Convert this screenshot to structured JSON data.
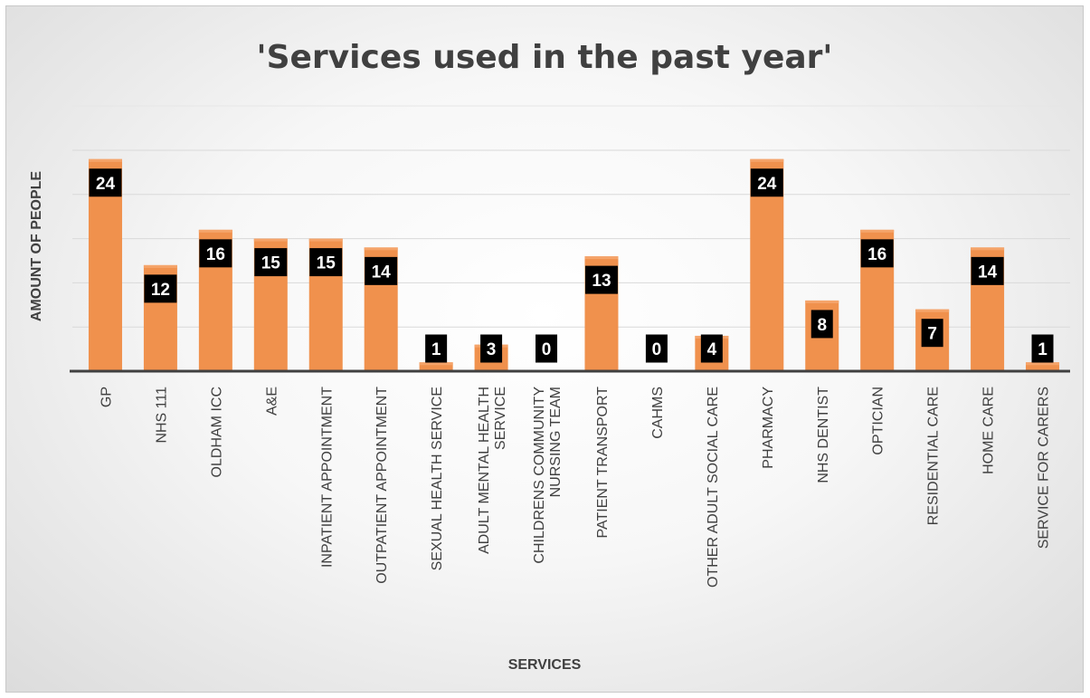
{
  "chart_data": {
    "type": "bar",
    "title": "'Services used in the past year'",
    "xlabel": "SERVICES",
    "ylabel": "AMOUNT OF PEOPLE",
    "ylim": [
      0,
      25
    ],
    "grid": true,
    "legend": "none",
    "bar_color": "#f0914d",
    "label_box_color": "#000000",
    "label_text_color": "#ffffff",
    "categories": [
      [
        "GP"
      ],
      [
        "NHS 111"
      ],
      [
        "OLDHAM ICC"
      ],
      [
        "A&E"
      ],
      [
        "INPATIENT APPOINTMENT"
      ],
      [
        "OUTPATIENT APPOINTMENT"
      ],
      [
        "SEXUAL HEALTH SERVICE"
      ],
      [
        "ADULT MENTAL HEALTH",
        "SERVICE"
      ],
      [
        "CHILDRENS COMMUNITY",
        "NURSING TEAM"
      ],
      [
        "PATIENT TRANSPORT"
      ],
      [
        "CAHMS"
      ],
      [
        "OTHER ADULT SOCIAL CARE"
      ],
      [
        "PHARMACY"
      ],
      [
        "NHS DENTIST"
      ],
      [
        "OPTICIAN"
      ],
      [
        "RESIDENTIAL CARE"
      ],
      [
        "HOME CARE"
      ],
      [
        "SERVICE FOR CARERS"
      ]
    ],
    "values": [
      24,
      12,
      16,
      15,
      15,
      14,
      1,
      3,
      0,
      13,
      0,
      4,
      24,
      8,
      16,
      7,
      14,
      1
    ]
  }
}
